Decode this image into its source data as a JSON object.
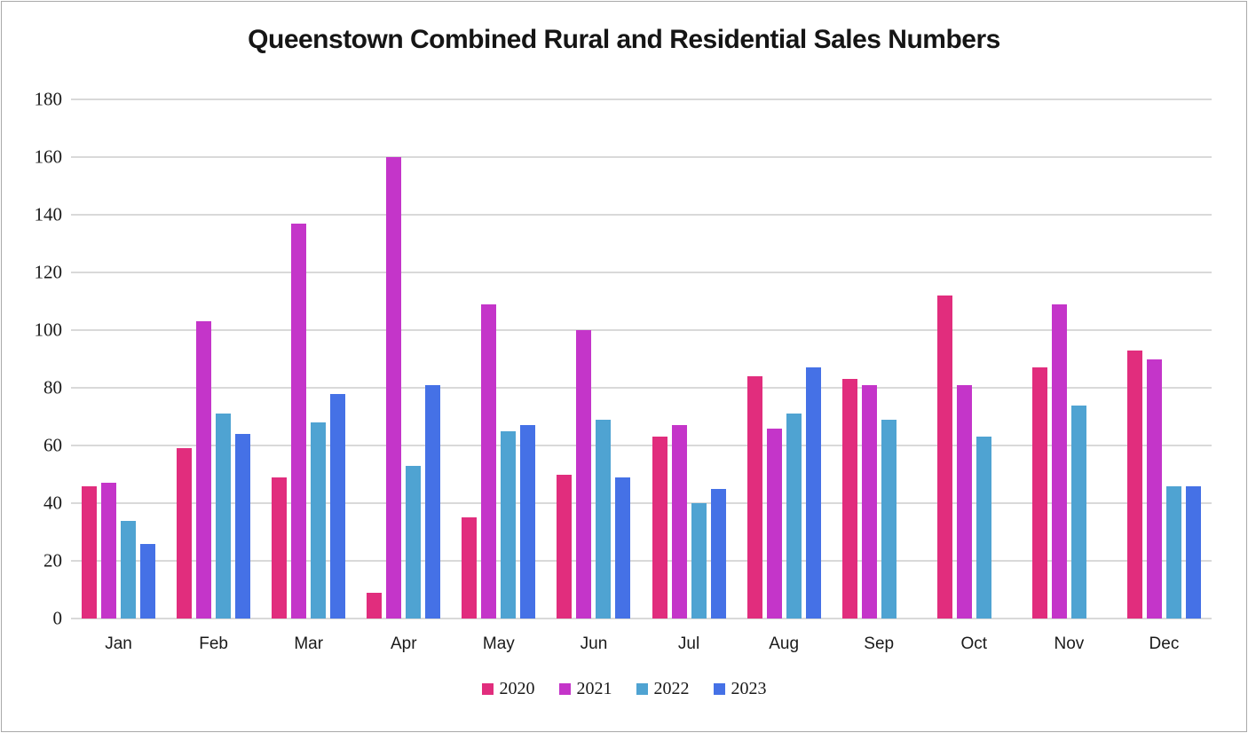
{
  "chart_data": {
    "type": "bar",
    "title": "Queenstown Combined Rural and Residential Sales Numbers",
    "categories": [
      "Jan",
      "Feb",
      "Mar",
      "Apr",
      "May",
      "Jun",
      "Jul",
      "Aug",
      "Sep",
      "Oct",
      "Nov",
      "Dec"
    ],
    "series": [
      {
        "name": "2020",
        "color": "#E12D7D",
        "values": [
          46,
          59,
          49,
          9,
          35,
          50,
          63,
          84,
          83,
          112,
          87,
          93
        ]
      },
      {
        "name": "2021",
        "color": "#C435C9",
        "values": [
          47,
          103,
          137,
          160,
          109,
          100,
          67,
          66,
          81,
          81,
          109,
          90
        ]
      },
      {
        "name": "2022",
        "color": "#4FA3D2",
        "values": [
          34,
          71,
          68,
          53,
          65,
          69,
          40,
          71,
          69,
          63,
          74,
          46
        ]
      },
      {
        "name": "2023",
        "color": "#4571E6",
        "values": [
          26,
          64,
          78,
          81,
          67,
          49,
          45,
          87,
          null,
          null,
          null,
          46
        ]
      }
    ],
    "xlabel": "",
    "ylabel": "",
    "ylim": [
      0,
      180
    ],
    "yticks": [
      0,
      20,
      40,
      60,
      80,
      100,
      120,
      140,
      160,
      180
    ],
    "grid": true,
    "legend_position": "bottom",
    "colors": {
      "gridline": "#D9D9D9",
      "frame_border": "#A9A9A9",
      "text": "#1A1A1A",
      "background": "#FFFFFF"
    }
  }
}
